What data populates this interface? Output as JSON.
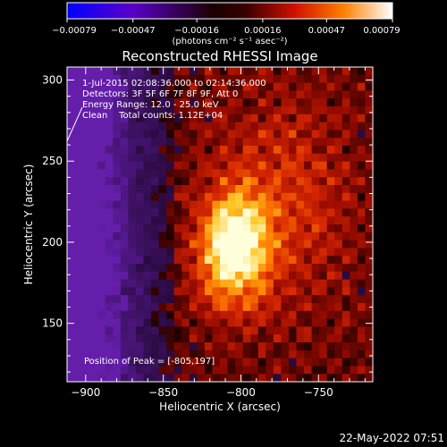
{
  "chart_data": {
    "type": "heatmap",
    "title": "Reconstructed RHESSI Image",
    "xlabel": "Heliocentric X (arcsec)",
    "ylabel": "Heliocentric Y (arcsec)",
    "xlim": [
      -912,
      -715
    ],
    "ylim": [
      114,
      308
    ],
    "x_ticks": [
      -900,
      -850,
      -800,
      -750
    ],
    "x_tick_labels": [
      "−900",
      "−850",
      "−800",
      "−750"
    ],
    "y_ticks": [
      150,
      200,
      250,
      300
    ],
    "y_tick_labels": [
      "150",
      "200",
      "250",
      "300"
    ],
    "colorbar": {
      "min": -0.00079,
      "max": 0.00079,
      "ticks": [
        -0.00079,
        -0.00047,
        -0.00016,
        0.00016,
        0.00047,
        0.00079
      ],
      "tick_labels": [
        "−0.00079",
        "−0.00047",
        "−0.00016",
        "0.00016",
        "0.00047",
        "0.00079"
      ],
      "units_label": "(photons cm⁻² s⁻¹ asec⁻²)"
    },
    "annotations": [
      "1-Jul-2015 02:08:36.000 to 02:14:36.000",
      "Detectors: 3F 5F 6F 7F 8F 9F, Att 0",
      "Energy Range: 12.0 - 25.0 keV",
      "Clean    Total counts: 1.12E+04"
    ],
    "peak_label": "Position of Peak = [-805,197]",
    "peak": {
      "x": -805,
      "y": 197
    },
    "colors": {
      "negative": "#5a1fa0",
      "background": "#000000"
    }
  },
  "footer": {
    "date": "22-May-2022 07:51"
  }
}
